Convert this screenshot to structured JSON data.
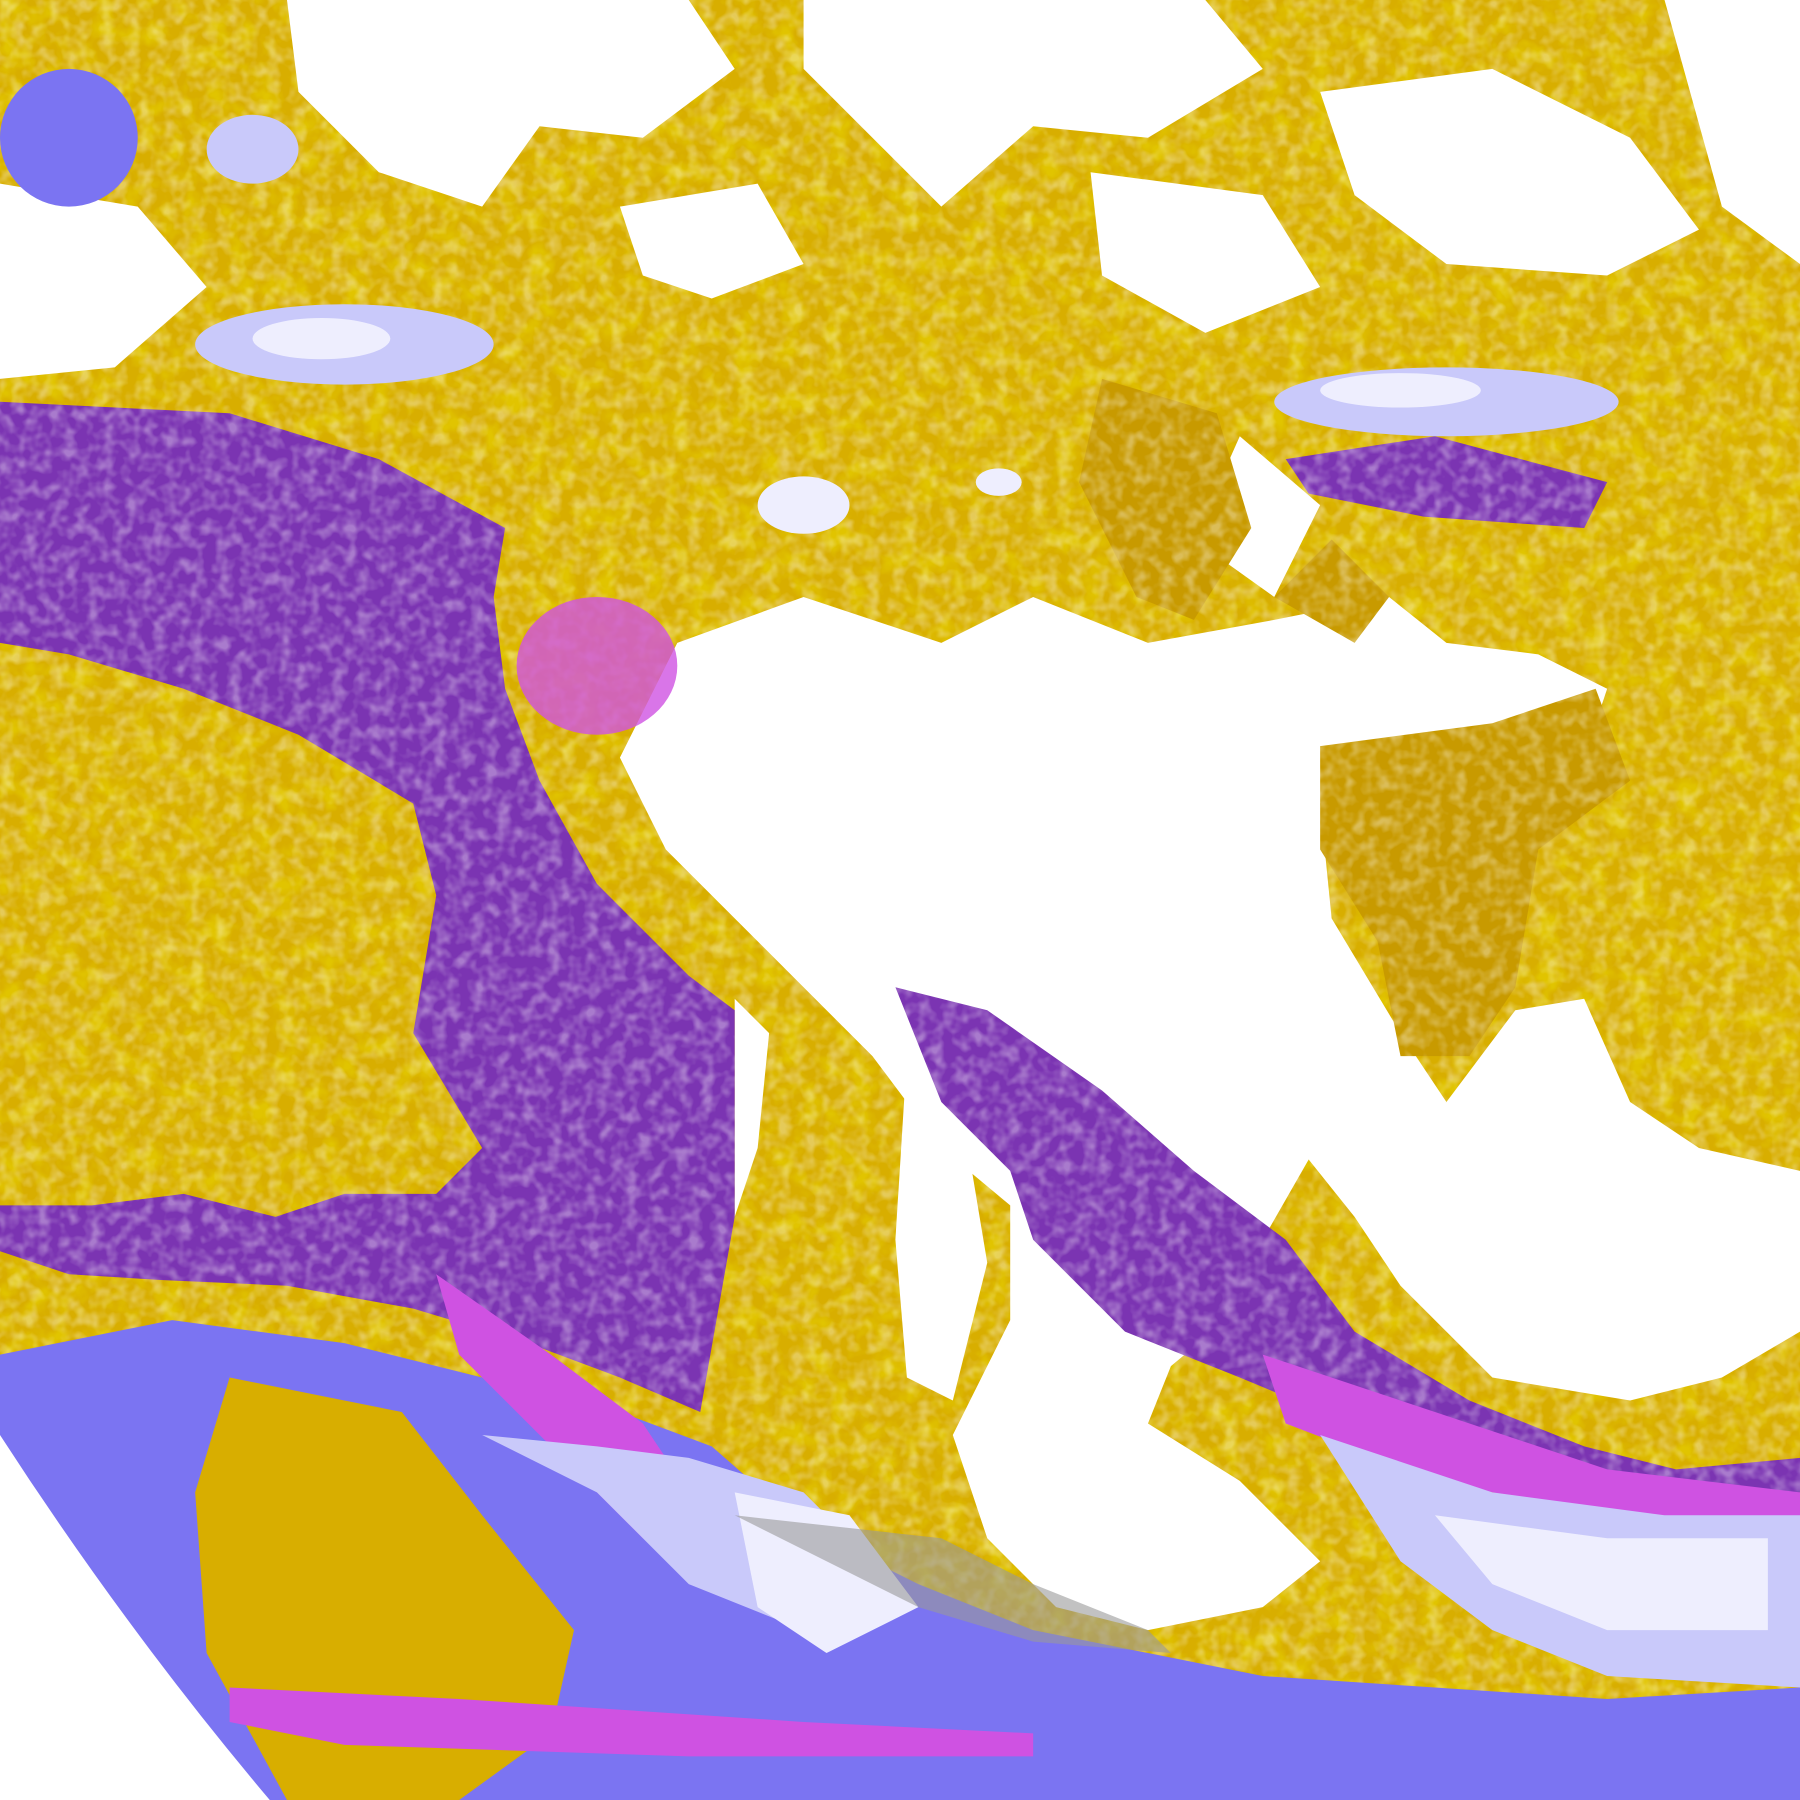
{
  "image": {
    "kind": "satellite cloud classification",
    "colors": {
      "background": "#ffffff",
      "gold": "#d8ae00",
      "dark_gold": "#be8e00",
      "purple": "#7b34b2",
      "magenta": "#cf52e2",
      "blue_violet": "#7b74f2",
      "lavender": "#c9c9fa",
      "pale_lavender": "#eeeefe",
      "gray": "#9a9a9a"
    }
  }
}
